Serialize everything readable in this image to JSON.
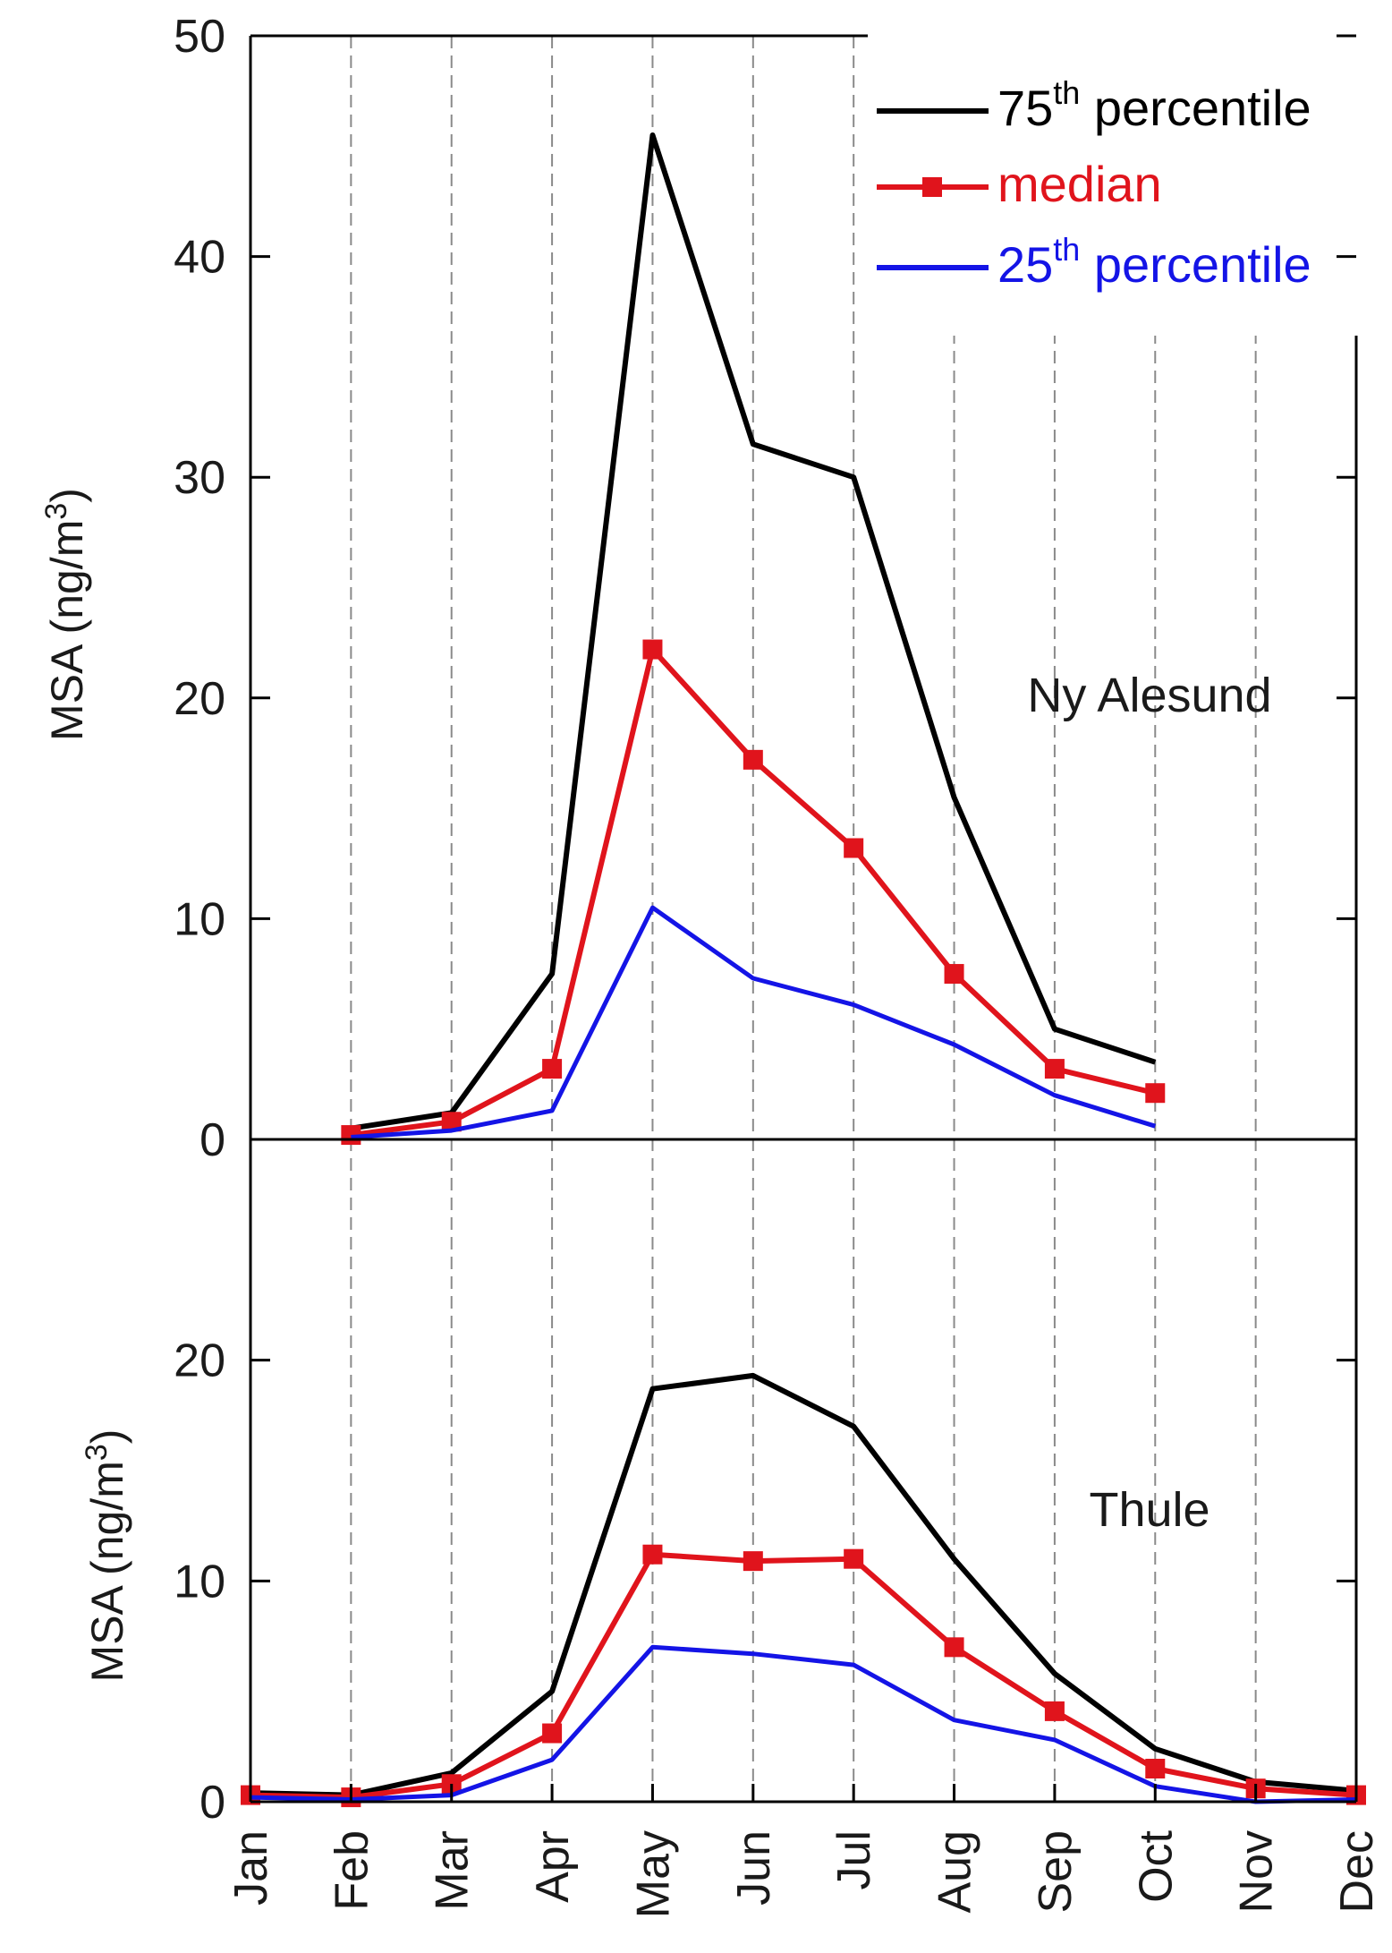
{
  "chart_data": {
    "type": "line",
    "categories": [
      "Jan",
      "Feb",
      "Mar",
      "Apr",
      "May",
      "Jun",
      "Jul",
      "Aug",
      "Sep",
      "Oct",
      "Nov",
      "Dec"
    ],
    "colors": {
      "p75": "#000000",
      "median": "#e0141c",
      "p25": "#1414e6"
    },
    "legend": {
      "p75": {
        "main": "75",
        "sup": "th",
        "rest": " percentile"
      },
      "median": {
        "main": "median"
      },
      "p25": {
        "main": "25",
        "sup": "th",
        "rest": " percentile"
      }
    },
    "ylabel": {
      "main": "MSA (ng/m",
      "sup": "3",
      "end": ")"
    },
    "panels": [
      {
        "name": "Ny Alesund",
        "ylim": [
          0,
          50
        ],
        "yticks": [
          0,
          10,
          20,
          30,
          40,
          50
        ],
        "series": [
          {
            "key": "p75",
            "name": "75th percentile",
            "values": [
              null,
              0.5,
              1.2,
              7.5,
              45.5,
              31.5,
              30.0,
              15.5,
              5.0,
              3.5,
              null,
              null
            ]
          },
          {
            "key": "median",
            "name": "median",
            "values": [
              null,
              0.2,
              0.8,
              3.2,
              22.2,
              17.2,
              13.2,
              7.5,
              3.2,
              2.1,
              null,
              null
            ]
          },
          {
            "key": "p25",
            "name": "25th percentile",
            "values": [
              null,
              0.1,
              0.4,
              1.3,
              10.5,
              7.3,
              6.1,
              4.3,
              2.0,
              0.6,
              null,
              null
            ]
          }
        ]
      },
      {
        "name": "Thule",
        "ylim": [
          0,
          30
        ],
        "yticks": [
          0,
          10,
          20
        ],
        "series": [
          {
            "key": "p75",
            "name": "75th percentile",
            "values": [
              0.4,
              0.3,
              1.3,
              5.0,
              18.7,
              19.3,
              17.0,
              11.0,
              5.8,
              2.4,
              0.9,
              0.5
            ]
          },
          {
            "key": "median",
            "name": "median",
            "values": [
              0.3,
              0.2,
              0.8,
              3.1,
              11.2,
              10.9,
              11.0,
              7.0,
              4.1,
              1.5,
              0.6,
              0.3
            ]
          },
          {
            "key": "p25",
            "name": "25th percentile",
            "values": [
              0.2,
              0.1,
              0.3,
              1.9,
              7.0,
              6.7,
              6.2,
              3.7,
              2.8,
              0.7,
              0.0,
              0.1
            ]
          }
        ]
      }
    ]
  }
}
